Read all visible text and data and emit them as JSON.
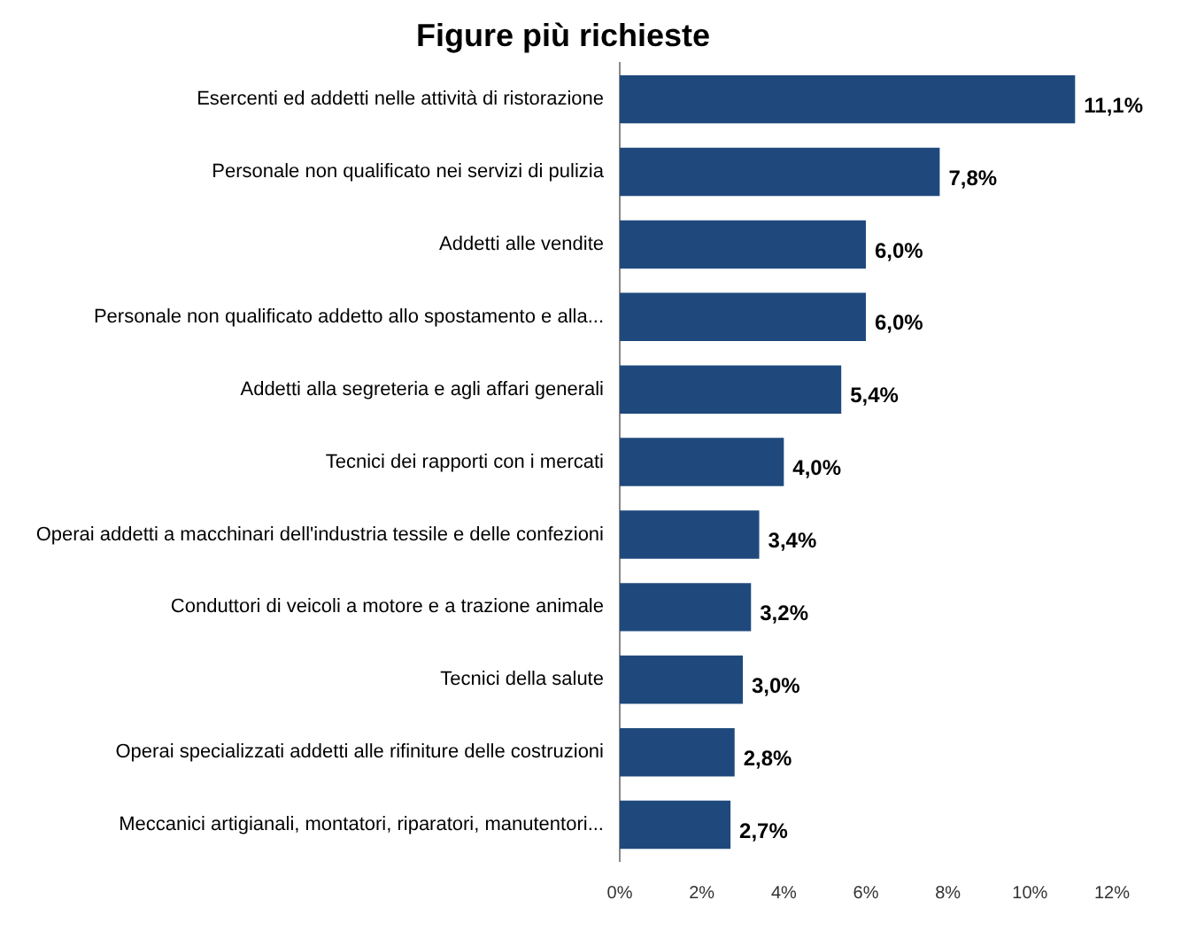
{
  "chart_data": {
    "type": "bar",
    "orientation": "horizontal",
    "title": "Figure più richieste",
    "categories": [
      "Esercenti ed addetti nelle attività di ristorazione",
      "Personale non qualificato nei servizi di pulizia",
      "Addetti alle vendite",
      "Personale non qualificato addetto allo spostamento e alla...",
      "Addetti alla segreteria e agli affari generali",
      "Tecnici dei rapporti con i mercati",
      "Operai addetti a macchinari dell'industria tessile e delle confezioni",
      "Conduttori di veicoli a motore e a trazione animale",
      "Tecnici della salute",
      "Operai specializzati addetti alle rifiniture delle costruzioni",
      "Meccanici artigianali, montatori, riparatori, manutentori..."
    ],
    "values": [
      11.1,
      7.8,
      6.0,
      6.0,
      5.4,
      4.0,
      3.4,
      3.2,
      3.0,
      2.8,
      2.7
    ],
    "value_labels": [
      "11,1%",
      "7,8%",
      "6,0%",
      "6,0%",
      "5,4%",
      "4,0%",
      "3,4%",
      "3,2%",
      "3,0%",
      "2,8%",
      "2,7%"
    ],
    "color": "#1f497d",
    "xlim": [
      0,
      12
    ],
    "xticks": [
      {
        "value": 0,
        "label": "0%"
      },
      {
        "value": 2,
        "label": "2%"
      },
      {
        "value": 4,
        "label": "4%"
      },
      {
        "value": 6,
        "label": "6%"
      },
      {
        "value": 8,
        "label": "8%"
      },
      {
        "value": 10,
        "label": "10%"
      },
      {
        "value": 12,
        "label": "12%"
      }
    ],
    "grid": false,
    "legend": false
  }
}
